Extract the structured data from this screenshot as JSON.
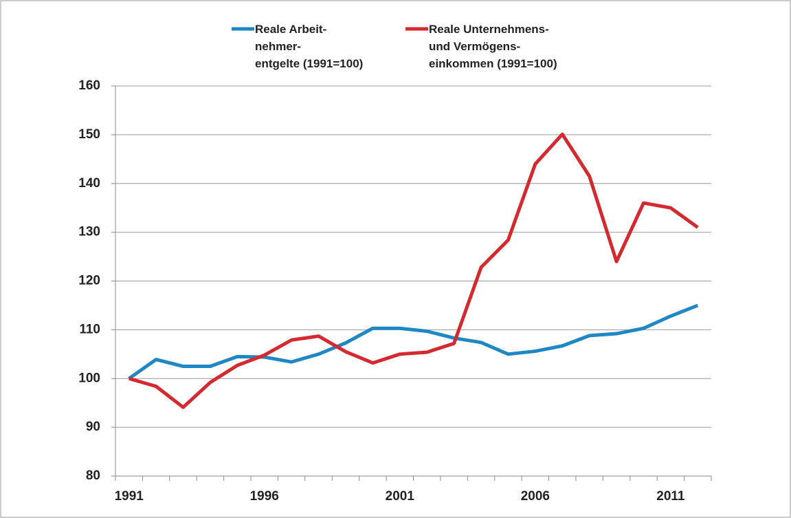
{
  "chart_data": {
    "type": "line",
    "categories": [
      "1991",
      null,
      null,
      null,
      null,
      "1996",
      null,
      null,
      null,
      null,
      "2001",
      null,
      null,
      null,
      null,
      "2006",
      null,
      null,
      null,
      null,
      "2011",
      null
    ],
    "series": [
      {
        "name": "Reale Arbeit-\nnehmer-\nentgelte (1991=100)",
        "color": "#1f87c4",
        "values": [
          100,
          103.9,
          102.5,
          102.5,
          104.5,
          104.4,
          103.4,
          105,
          107.3,
          110.3,
          110.3,
          109.7,
          108.3,
          107.4,
          105,
          105.6,
          106.7,
          108.8,
          109.2,
          110.3,
          112.8,
          115
        ]
      },
      {
        "name": "Reale Unternehmens-\nund Vermögens-\neinkommen (1991=100)",
        "color": "#d42a2f",
        "values": [
          100,
          98.4,
          94.1,
          99.2,
          102.7,
          104.8,
          107.9,
          108.7,
          105.5,
          103.2,
          105,
          105.4,
          107.2,
          122.8,
          128.4,
          144,
          150.1,
          141.5,
          124,
          136,
          135,
          131
        ]
      }
    ],
    "ylim": [
      80,
      160
    ],
    "yticks": [
      80,
      90,
      100,
      110,
      120,
      130,
      140,
      150,
      160
    ],
    "grid": true
  }
}
